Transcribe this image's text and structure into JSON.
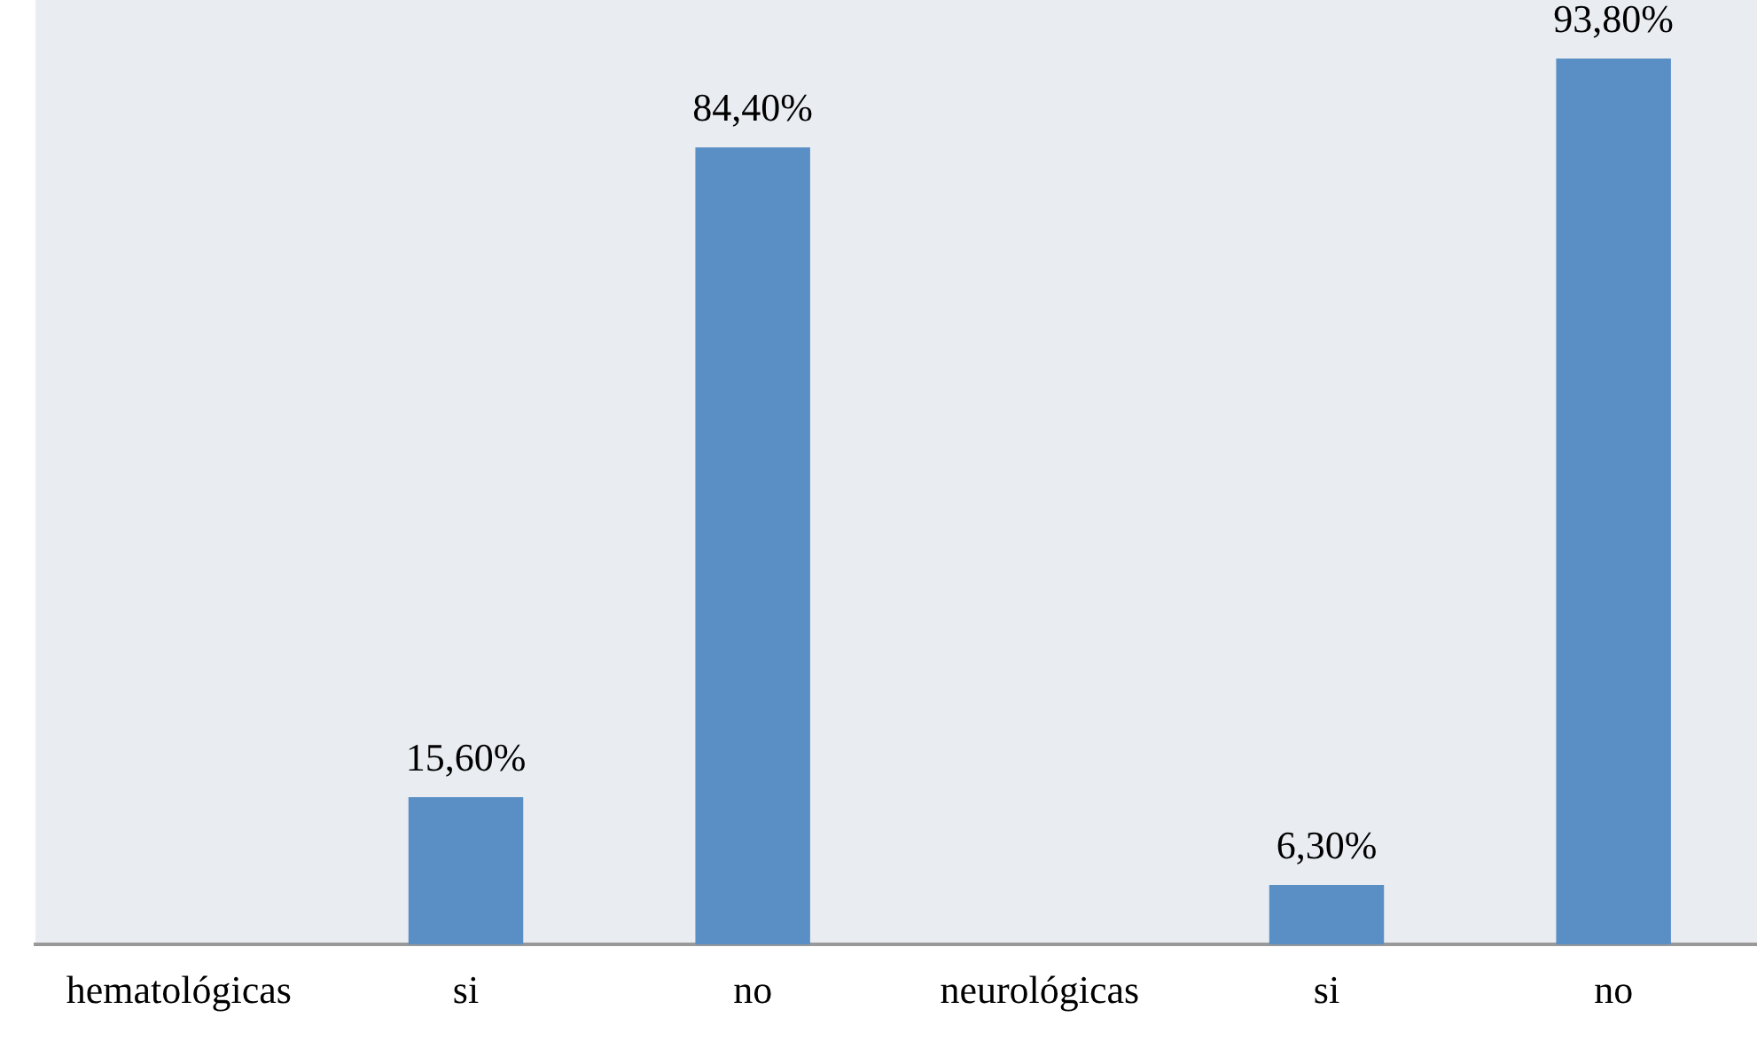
{
  "chart_data": {
    "type": "bar",
    "categories": [
      "hematológicas",
      "si",
      "no",
      "neurológicas",
      "si",
      "no"
    ],
    "values": [
      null,
      15.6,
      84.4,
      null,
      6.3,
      93.8
    ],
    "value_labels": [
      null,
      "15,60%",
      "84,40%",
      null,
      "6,30%",
      "93,80%"
    ],
    "color": "#5a8fc6",
    "grid": false,
    "legend": false
  }
}
